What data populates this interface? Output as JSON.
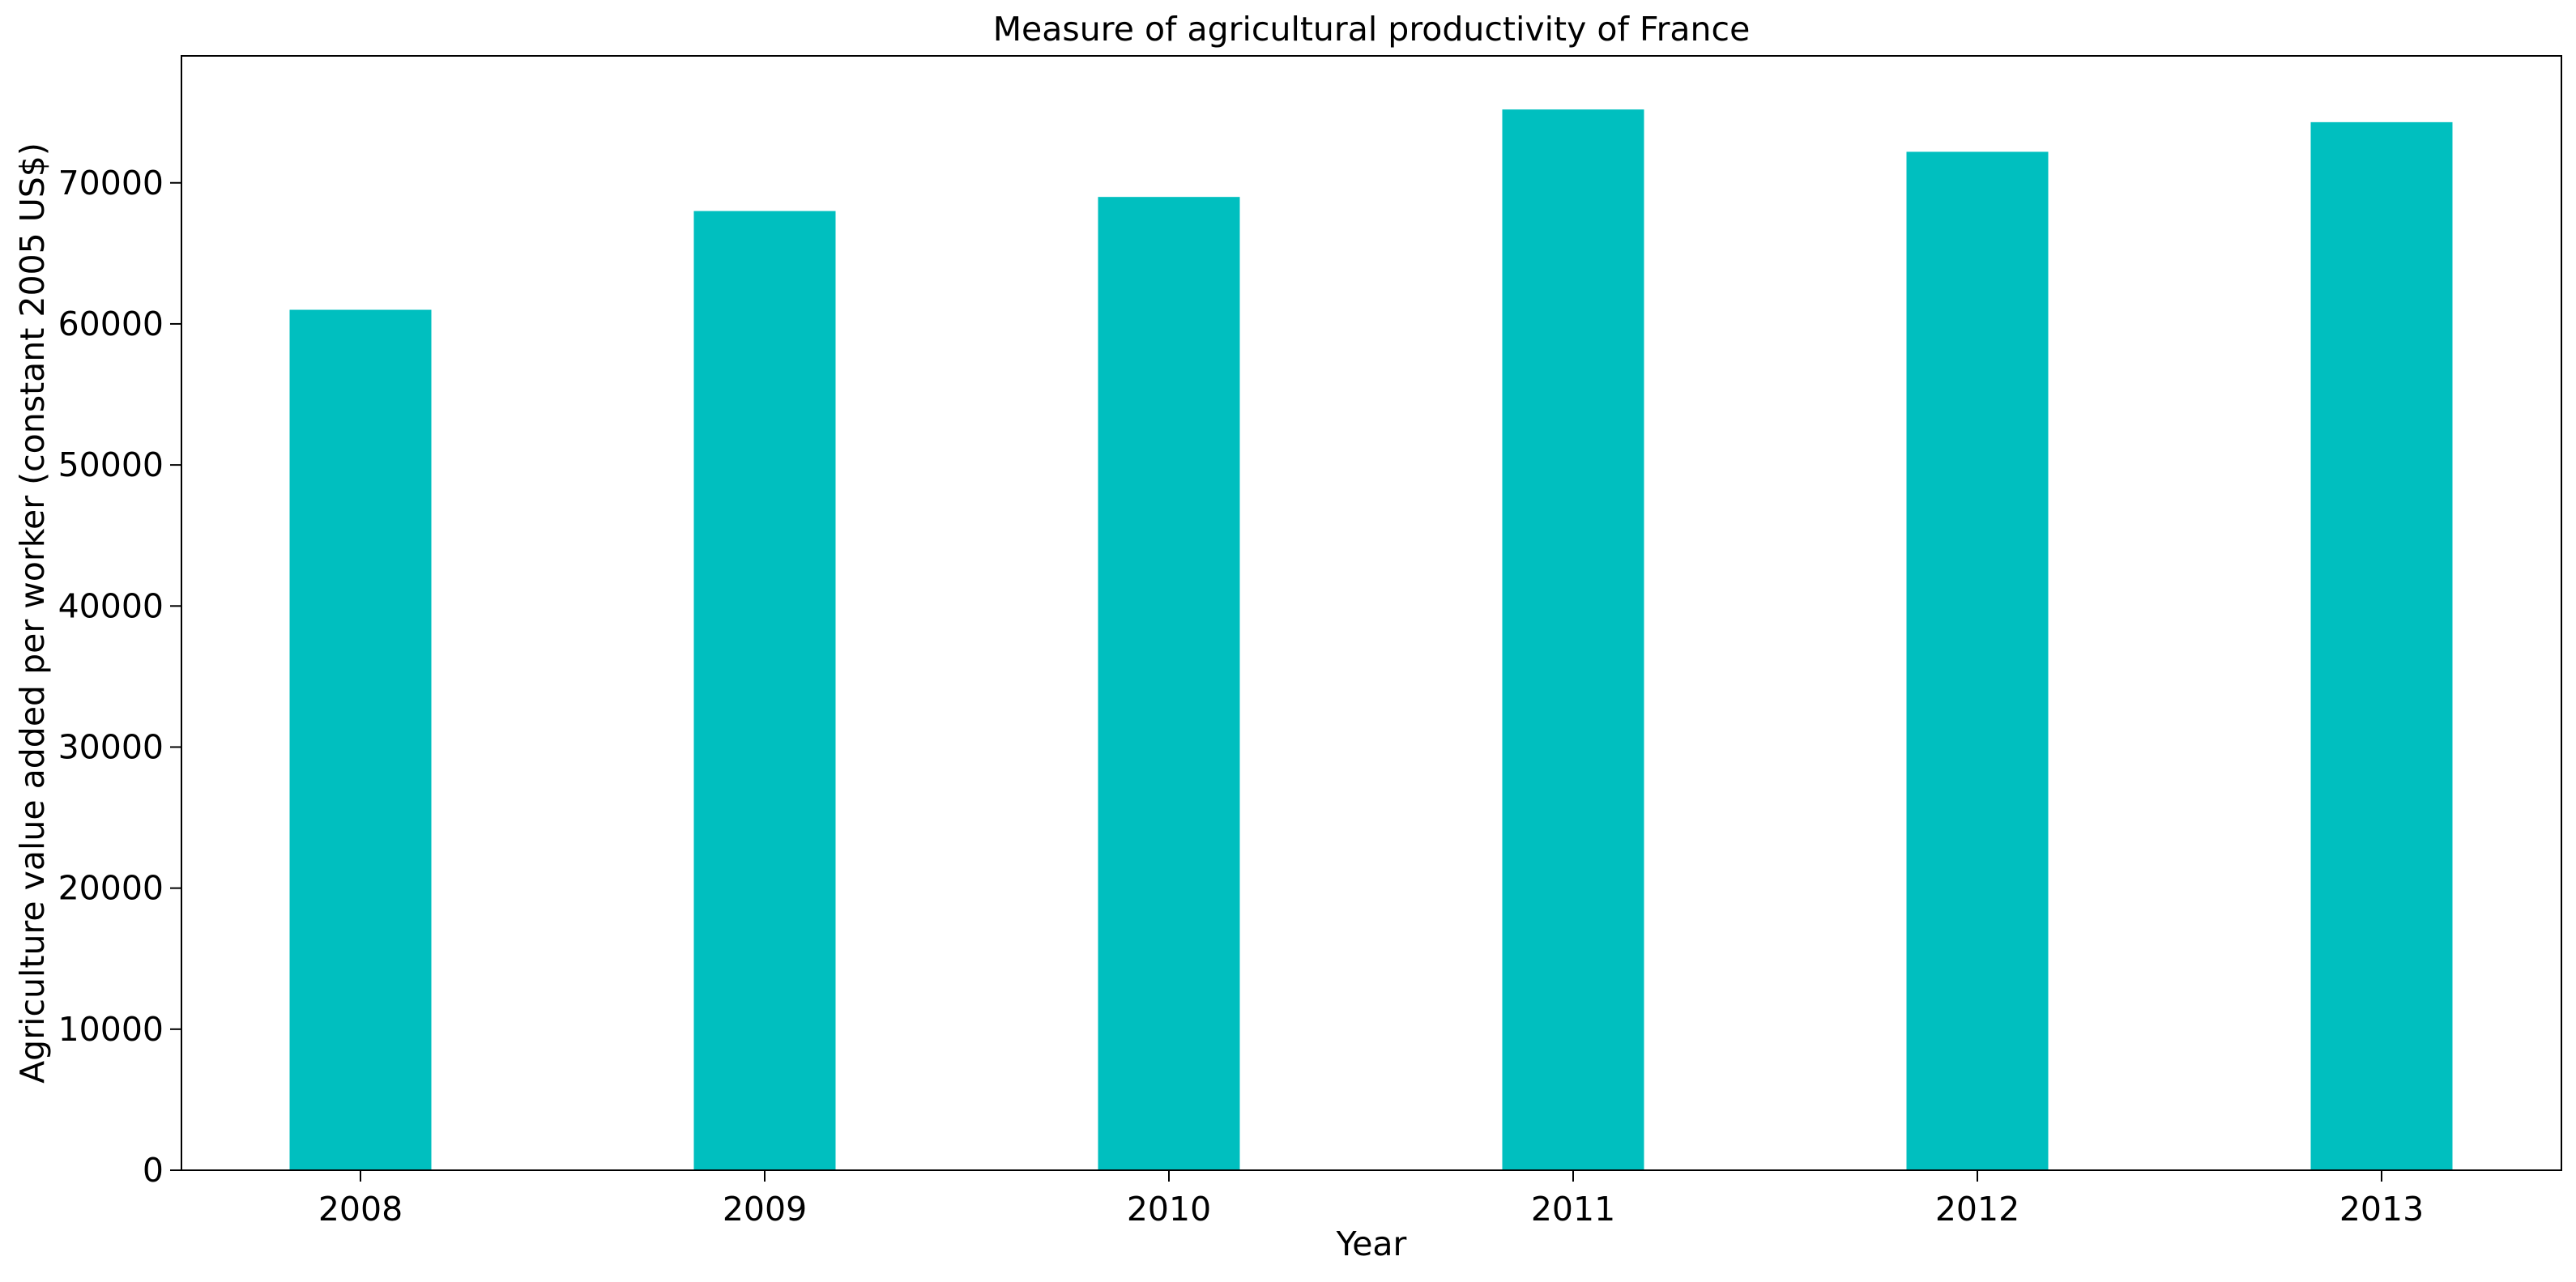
{
  "chart_data": {
    "type": "bar",
    "title": "Measure of agricultural productivity of France",
    "xlabel": "Year",
    "ylabel": "Agriculture value added per worker (constant 2005 US$)",
    "categories": [
      "2008",
      "2009",
      "2010",
      "2011",
      "2012",
      "2013"
    ],
    "values": [
      61000,
      68000,
      69000,
      75200,
      72200,
      74300
    ],
    "ylim": [
      0,
      79000
    ],
    "yticks": [
      0,
      10000,
      20000,
      30000,
      40000,
      50000,
      60000,
      70000
    ],
    "ytick_labels": [
      "0",
      "10000",
      "20000",
      "30000",
      "40000",
      "50000",
      "60000",
      "70000"
    ],
    "bar_color": "#00bfbf",
    "grid": false,
    "legend": "none"
  }
}
